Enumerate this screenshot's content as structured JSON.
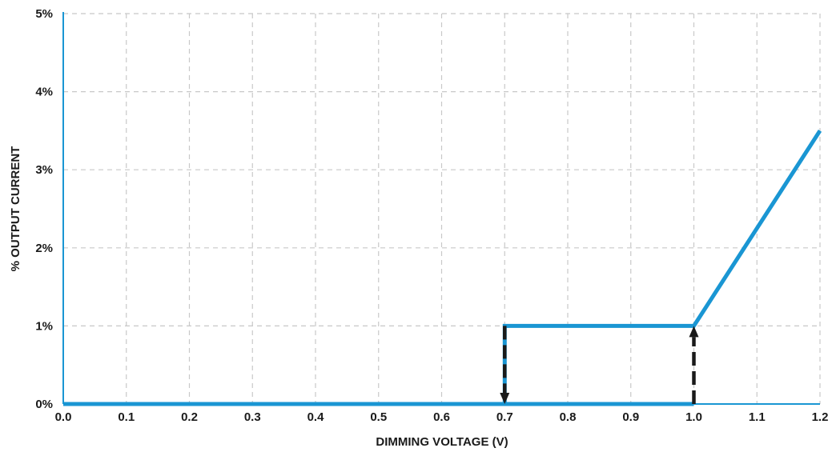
{
  "chart_data": {
    "type": "line",
    "title": "",
    "xlabel": "DIMMING VOLTAGE (V)",
    "ylabel": "% OUTPUT CURRENT",
    "xlim": [
      0,
      1.2
    ],
    "ylim": [
      0,
      5
    ],
    "x_ticks": [
      "0.0",
      "0.1",
      "0.2",
      "0.3",
      "0.4",
      "0.5",
      "0.6",
      "0.7",
      "0.8",
      "0.9",
      "1.0",
      "1.1",
      "1.2"
    ],
    "x_tick_values": [
      0,
      0.1,
      0.2,
      0.3,
      0.4,
      0.5,
      0.6,
      0.7,
      0.8,
      0.9,
      1.0,
      1.1,
      1.2
    ],
    "y_ticks": [
      "0%",
      "1%",
      "2%",
      "3%",
      "4%",
      "5%"
    ],
    "y_tick_values": [
      0,
      1,
      2,
      3,
      4,
      5
    ],
    "grid": true,
    "series": [
      {
        "color": "#1a96d3",
        "x": [
          0,
          0.7,
          0.7,
          1.0,
          1.2
        ],
        "y": [
          0,
          0,
          1,
          1,
          3.5
        ]
      },
      {
        "color": "#1a96d3",
        "x": [
          0.7,
          1.0
        ],
        "y": [
          0,
          0
        ]
      }
    ],
    "annotations": [
      {
        "type": "arrow",
        "direction": "down",
        "x": 0.7,
        "y_from": 1,
        "y_to": 0,
        "color": "#1a1a1a"
      },
      {
        "type": "arrow",
        "direction": "up",
        "x": 1.0,
        "y_from": 0,
        "y_to": 1,
        "color": "#1a1a1a"
      }
    ]
  }
}
